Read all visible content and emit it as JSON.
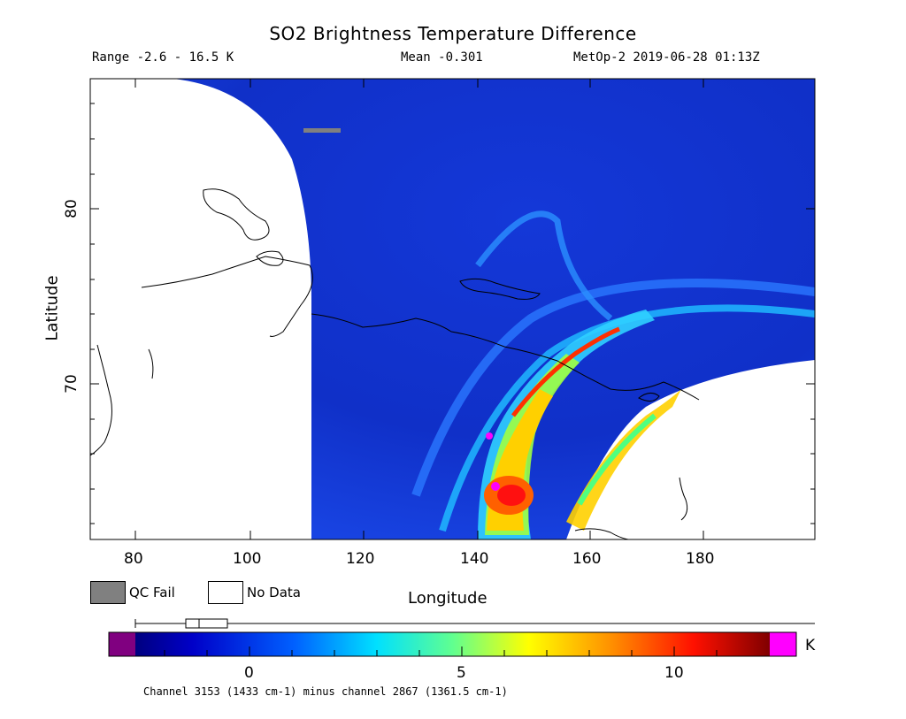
{
  "header": {
    "title": "SO2 Brightness Temperature Difference",
    "range": "Range -2.6 - 16.5 K",
    "mean": "Mean -0.301",
    "satellite": "MetOp-2 2019-06-28 01:13Z"
  },
  "axes": {
    "xlabel": "Longitude",
    "ylabel": "Latitude",
    "xticks": [
      "80",
      "100",
      "120",
      "140",
      "160",
      "180"
    ],
    "yticks": [
      "80",
      "70"
    ]
  },
  "legend": {
    "qc_fail_label": "QC Fail",
    "no_data_label": "No Data",
    "qc_fail_color": "#808080",
    "no_data_color": "#ffffff"
  },
  "colorbar": {
    "ticks": [
      "0",
      "5",
      "10"
    ],
    "unit": "K",
    "under_color": "#800080",
    "over_color": "#ff00ff",
    "caption": "Channel 3153 (1433 cm-1) minus channel 2867 (1361.5 cm-1)"
  },
  "map": {
    "background_color": "#1028d0",
    "plume_colors": [
      "#00c8ff",
      "#40ff80",
      "#ffff00",
      "#ff8000",
      "#ff0000",
      "#ff00ff"
    ]
  }
}
